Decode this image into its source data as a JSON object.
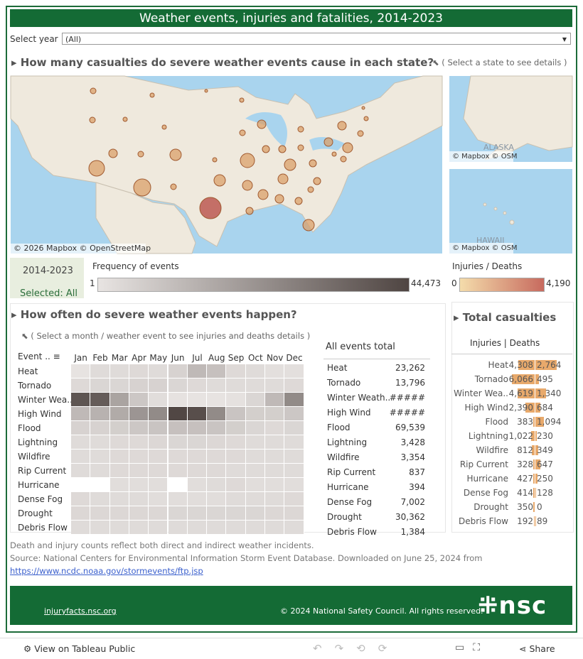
{
  "header": {
    "title": "Weather events, injuries and fatalities, 2014-2023"
  },
  "filter": {
    "label": "Select year",
    "value": "(All)"
  },
  "map_section": {
    "title": "How many casualties do severe weather events cause in each state?",
    "hint": "( Select a state to see details )",
    "main_credits": "© 2026 Mapbox  © OpenStreetMap",
    "alaska": {
      "label": "ALASKA",
      "credits": "© Mapbox  © OSM"
    },
    "hawaii": {
      "label": "HAWAII",
      "credits": "© Mapbox  © OSM"
    }
  },
  "legend": {
    "year_box": "2014-2023",
    "selected": "Selected: All",
    "frequency": {
      "title": "Frequency of events",
      "min": 1,
      "max": {
        "value": 44473,
        "label": "44,473"
      }
    },
    "casualties": {
      "title": "Injuries / Deaths",
      "min": 0,
      "max": {
        "value": 4190,
        "label": "4,190"
      }
    }
  },
  "events_section": {
    "title": "How often do severe weather events happen?",
    "hint": "( Select a month / weather event to see injuries and deaths details )",
    "event_header": "Event ..",
    "months": [
      "Jan",
      "Feb",
      "Mar",
      "Apr",
      "May",
      "Jun",
      "Jul",
      "Aug",
      "Sep",
      "Oct",
      "Nov",
      "Dec"
    ],
    "events": [
      "Heat",
      "Tornado",
      "Winter Wea..",
      "High Wind",
      "Flood",
      "Lightning",
      "Wildfire",
      "Rip Current",
      "Hurricane",
      "Dense Fog",
      "Drought",
      "Debris Flow"
    ],
    "frequency": [
      [
        300,
        2500,
        2500,
        3000,
        2500,
        5000,
        12000,
        10000,
        3000,
        2500,
        1500,
        1500
      ],
      [
        3000,
        4000,
        4000,
        5000,
        5000,
        4000,
        3000,
        2500,
        2500,
        2500,
        2500,
        3000
      ],
      [
        40000,
        38000,
        18000,
        8000,
        2000,
        500,
        300,
        300,
        800,
        4000,
        12000,
        25000
      ],
      [
        12000,
        14000,
        16000,
        22000,
        25000,
        44000,
        42000,
        25000,
        9000,
        6000,
        6000,
        8000
      ],
      [
        5000,
        5000,
        6000,
        8000,
        9000,
        10000,
        10000,
        9000,
        6000,
        4000,
        3000,
        4000
      ],
      [
        2500,
        2500,
        3000,
        3000,
        3500,
        4000,
        4000,
        3500,
        3000,
        2500,
        2500,
        2500
      ],
      [
        2500,
        2500,
        3000,
        3000,
        3000,
        3000,
        3000,
        3000,
        3000,
        2500,
        2500,
        2500
      ],
      [
        2500,
        2500,
        3000,
        3000,
        3000,
        3000,
        3000,
        3000,
        2500,
        2500,
        2500,
        2500
      ],
      [
        null,
        null,
        2000,
        2000,
        2000,
        null,
        2000,
        2500,
        3000,
        2000,
        2000,
        2000
      ],
      [
        3000,
        2500,
        2500,
        2500,
        2000,
        2000,
        2000,
        2000,
        2500,
        2500,
        2500,
        3000
      ],
      [
        3500,
        3500,
        3500,
        3500,
        3500,
        4000,
        4000,
        4000,
        4000,
        4000,
        3500,
        3500
      ],
      [
        2500,
        2500,
        2500,
        2500,
        2500,
        2500,
        2500,
        2500,
        2500,
        2500,
        2500,
        2500
      ]
    ],
    "totals": {
      "title": "All events total",
      "names": [
        "Heat",
        "Tornado",
        "Winter Weath..",
        "High Wind",
        "Flood",
        "Lightning",
        "Wildfire",
        "Rip Current",
        "Hurricane",
        "Dense Fog",
        "Drought",
        "Debris Flow"
      ],
      "values": [
        "23,262",
        "13,796",
        "#####",
        "#####",
        "69,539",
        "3,428",
        "3,354",
        "837",
        "394",
        "7,002",
        "30,362",
        "1,384"
      ]
    }
  },
  "casualties": {
    "title": "Total casualties",
    "subheader": "Injuries | Deaths",
    "names": [
      "Heat",
      "Tornado",
      "Winter Wea..",
      "High Wind",
      "Flood",
      "Lightning",
      "Wildfire",
      "Rip Current",
      "Hurricane",
      "Dense Fog",
      "Drought",
      "Debris Flow"
    ],
    "injuries": [
      {
        "value": 4308,
        "label": "4,308"
      },
      {
        "value": 6066,
        "label": "6,066"
      },
      {
        "value": 4619,
        "label": "4,619"
      },
      {
        "value": 2390,
        "label": "2,390"
      },
      383,
      {
        "value": 1022,
        "label": "1,022"
      },
      812,
      328,
      427,
      414,
      350,
      192
    ],
    "deaths": [
      {
        "value": 2764,
        "label": "2,764"
      },
      495,
      {
        "value": 1340,
        "label": "1,340"
      },
      684,
      {
        "value": 1094,
        "label": "1,094"
      },
      230,
      349,
      647,
      250,
      128,
      0,
      89
    ]
  },
  "notes": {
    "line1": "Death and injury counts reflect both direct and indirect weather incidents.",
    "line2": "Source: National Centers for Environmental Information Storm Event Database. Downloaded on June 25, 2024 from",
    "link": "https://www.ncdc.noaa.gov/stormevents/ftp.jsp"
  },
  "banner": {
    "site": "injuryfacts.nsc.org",
    "copyright": "© 2024 National Safety Council. All rights reserved.",
    "logo": "nsc"
  },
  "toolbar": {
    "view": "View on Tableau Public",
    "share": "Share"
  }
}
